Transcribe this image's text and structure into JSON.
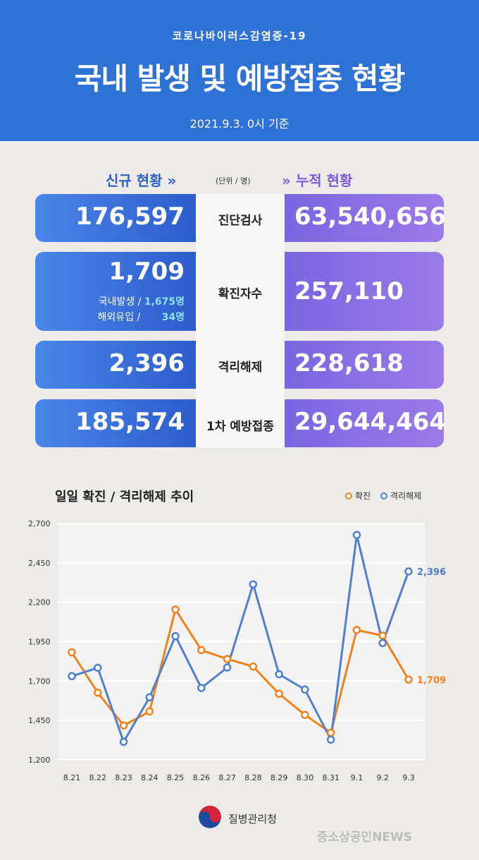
{
  "header": {
    "subtitle": "코로나바이러스감염증-19",
    "title": "국내 발생 및 예방접종 현황",
    "date": "2021.9.3. 0시 기준"
  },
  "sections": {
    "new_label": "신규 현황",
    "cumulative_label": "누적 현황",
    "unit": "(단위 / 명)"
  },
  "rows": [
    {
      "label": "진단검사",
      "new": "176,597",
      "cumulative": "63,540,656"
    },
    {
      "label": "확진자수",
      "new": "1,709",
      "cumulative": "257,110",
      "domestic_label": "국내발생 /",
      "domestic": "1,675명",
      "overseas_label": "해외유입 /",
      "overseas": "34명"
    },
    {
      "label": "격리해제",
      "new": "2,396",
      "cumulative": "228,618"
    },
    {
      "label": "1차 예방접종",
      "new": "185,574",
      "cumulative": "29,644,464"
    }
  ],
  "chart_data": {
    "type": "line",
    "title": "일일 확진 / 격리해제 추이",
    "categories": [
      "8.21",
      "8.22",
      "8.23",
      "8.24",
      "8.25",
      "8.26",
      "8.27",
      "8.28",
      "8.29",
      "8.30",
      "8.31",
      "9.1",
      "9.2",
      "9.3"
    ],
    "yticks": [
      "1,200",
      "1,450",
      "1,700",
      "1,950",
      "2,200",
      "2,450",
      "2,700"
    ],
    "ylim": [
      1200,
      2700
    ],
    "grid": true,
    "legend_position": "top-right",
    "series": [
      {
        "name": "확진",
        "color": "#f0821e",
        "values": [
          1882,
          1626,
          1418,
          1507,
          2154,
          1896,
          1840,
          1792,
          1619,
          1485,
          1372,
          2024,
          1988,
          1709
        ],
        "end_label": "1,709"
      },
      {
        "name": "격리해제",
        "color": "#4f7fcf",
        "values": [
          1731,
          1784,
          1314,
          1597,
          1985,
          1656,
          1786,
          2314,
          1743,
          1646,
          1328,
          2627,
          1941,
          2396
        ],
        "end_label": "2,396"
      }
    ]
  },
  "footer": {
    "org": "질병관리청",
    "watermark": "중소상공인NEWS"
  }
}
